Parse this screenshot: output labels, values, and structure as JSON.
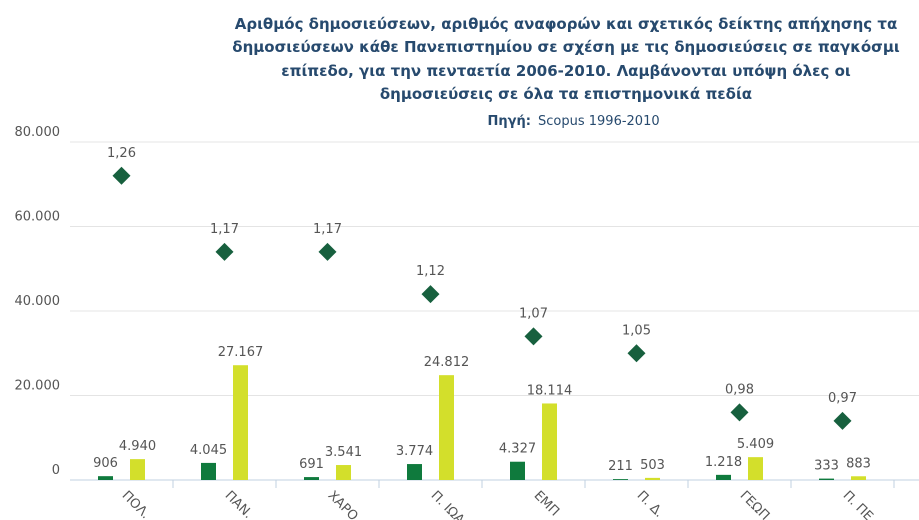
{
  "chart_data": {
    "type": "bar",
    "title": [
      "Αριθμός δημοσιεύσεων, αριθμός αναφορών και σχετικός δείκτης απήχησης τα",
      "δημοσιεύσεων κάθε Πανεπιστημίου σε σχέση με τις δημοσιεύσεις σε παγκόσμι",
      "επίπεδο, για την πενταετία 2006-2010. Λαμβάνονται υπόψη όλες οι",
      "δημοσιεύσεις σε όλα τα επιστημονικά πεδία"
    ],
    "subtitle": [
      "Πηγή:",
      "Scopus 1996-2010"
    ],
    "categories": [
      "ΠΟΛ. ",
      "ΠΑΝ. ",
      "ΧΑΡΟ",
      "Π. ΙΩΑ",
      "ΕΜΠ",
      "Π. Δ. ",
      "ΓΕΩΠ",
      "Π. ΠΕ"
    ],
    "series": [
      {
        "type": "bar",
        "color": "#0f7a3d",
        "values": [
          906,
          4045,
          691,
          3774,
          4327,
          211,
          1218,
          333
        ],
        "value_labels": [
          "906",
          "4.045",
          "691",
          "3.774",
          "4.327",
          "211",
          "1.218",
          "333"
        ]
      },
      {
        "type": "bar",
        "color": "#d3df2b",
        "values": [
          4940,
          27167,
          3541,
          24812,
          18114,
          503,
          5409,
          883
        ],
        "value_labels": [
          "4.940",
          "27.167",
          "3.541",
          "24.812",
          "18.114",
          "503",
          "5.409",
          "883"
        ]
      },
      {
        "type": "scatter",
        "axis": "y2",
        "color": "#17603e",
        "values": [
          1.26,
          1.17,
          1.17,
          1.12,
          1.07,
          1.05,
          0.98,
          0.97
        ],
        "value_labels": [
          "1,26",
          "1,17",
          "1,17",
          "1,12",
          "1,07",
          "1,05",
          "0,98",
          "0,97"
        ]
      }
    ],
    "ylim": [
      0,
      80000
    ],
    "yticks": [
      0,
      {
        "value": 20000,
        "label": "20.000"
      },
      {
        "value": 40000,
        "label": "40.000"
      },
      {
        "value": 60000,
        "label": "60.000"
      },
      {
        "value": 80000,
        "label": "80.000"
      }
    ],
    "y2lim": [
      0.9,
      1.3
    ],
    "grid": true
  }
}
